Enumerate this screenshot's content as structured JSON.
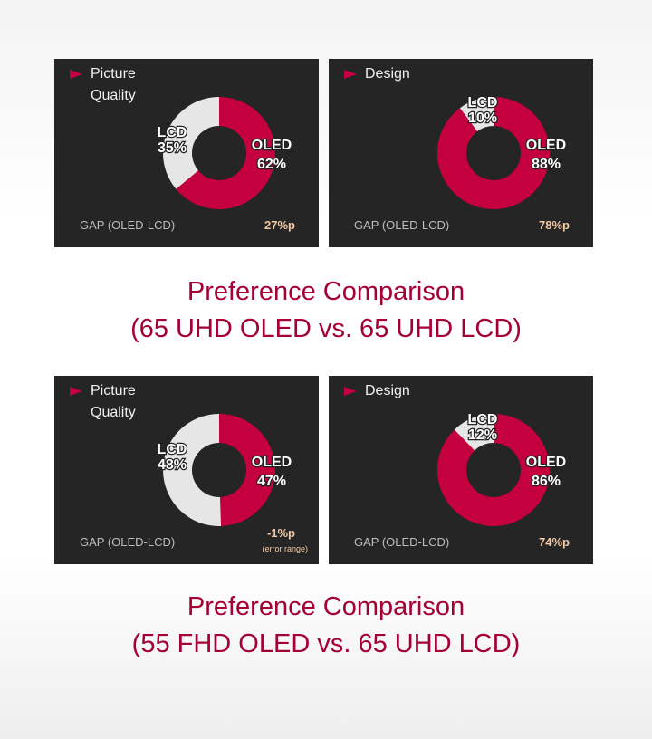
{
  "chart_data": [
    {
      "type": "pie",
      "title": "Picture Quality",
      "categories": [
        "LCD",
        "OLED"
      ],
      "values": [
        35,
        62
      ],
      "value_labels": [
        "35%",
        "62%"
      ],
      "colors": [
        "#e6e6e6",
        "#c4003e"
      ],
      "gap_label": "GAP (OLED-LCD)",
      "gap": "27%p"
    },
    {
      "type": "pie",
      "title": "Design",
      "categories": [
        "LCD",
        "OLED"
      ],
      "values": [
        10,
        88
      ],
      "value_labels": [
        "10%",
        "88%"
      ],
      "colors": [
        "#e6e6e6",
        "#c4003e"
      ],
      "gap_label": "GAP (OLED-LCD)",
      "gap": "78%p"
    },
    {
      "type": "pie",
      "title": "Picture Quality",
      "categories": [
        "LCD",
        "OLED"
      ],
      "values": [
        48,
        47
      ],
      "value_labels": [
        "48%",
        "47%"
      ],
      "colors": [
        "#e6e6e6",
        "#c4003e"
      ],
      "gap_label": "GAP (OLED-LCD)",
      "gap": "-1%p",
      "note": "(error range)"
    },
    {
      "type": "pie",
      "title": "Design",
      "categories": [
        "LCD",
        "OLED"
      ],
      "values": [
        12,
        86
      ],
      "value_labels": [
        "12%",
        "86%"
      ],
      "colors": [
        "#e6e6e6",
        "#c4003e"
      ],
      "gap_label": "GAP (OLED-LCD)",
      "gap": "74%p"
    }
  ],
  "captions": [
    [
      "Preference Comparison",
      "(65 UHD OLED  vs. 65 UHD LCD)"
    ],
    [
      "Preference Comparison",
      "(55 FHD OLED  vs. 65 UHD LCD)"
    ]
  ]
}
